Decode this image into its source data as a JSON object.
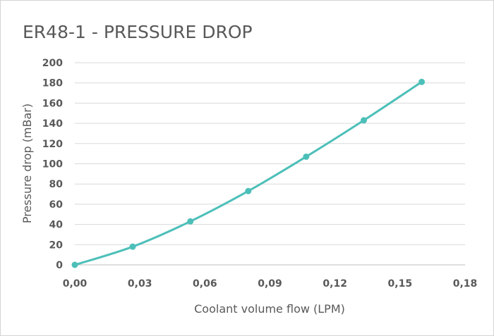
{
  "chart_data": {
    "type": "scatter",
    "title": "ER48-1 - PRESSURE DROP",
    "xlabel": "Coolant volume flow (LPM)",
    "ylabel": "Pressure drop (mBar)",
    "xlim": [
      0,
      0.18
    ],
    "ylim": [
      0,
      200
    ],
    "x_ticks": [
      0,
      0.03,
      0.06,
      0.09,
      0.12,
      0.15,
      0.18
    ],
    "x_tick_labels": [
      "0,00",
      "0,03",
      "0,06",
      "0,09",
      "0,12",
      "0,15",
      "0,18"
    ],
    "y_ticks": [
      0,
      20,
      40,
      60,
      80,
      100,
      120,
      140,
      160,
      180,
      200
    ],
    "y_tick_labels": [
      "0",
      "20",
      "40",
      "60",
      "80",
      "100",
      "120",
      "140",
      "160",
      "180",
      "200"
    ],
    "grid": true,
    "legend": "none",
    "series_color": "#4dbfb9",
    "series": [
      {
        "x": [
          0.0,
          0.0267,
          0.0533,
          0.08,
          0.1067,
          0.1333,
          0.16
        ],
        "y": [
          0,
          18,
          43,
          73,
          107,
          143,
          181
        ]
      }
    ]
  }
}
